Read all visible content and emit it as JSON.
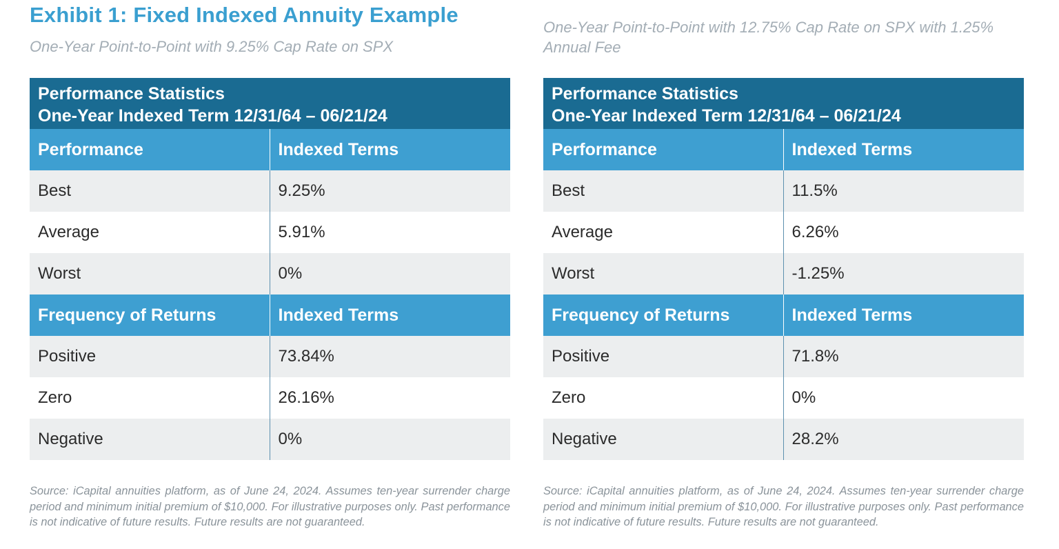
{
  "exhibit_title": "Exhibit 1: Fixed Indexed Annuity Example",
  "panels": [
    {
      "subtitle": "One-Year Point-to-Point with 9.25% Cap Rate on SPX",
      "table_title_line1": "Performance Statistics",
      "table_title_line2": "One-Year Indexed Term 12/31/64 – 06/21/24",
      "performance_header": [
        "Performance",
        "Indexed Terms"
      ],
      "performance_rows": [
        {
          "label": "Best",
          "value": "9.25%"
        },
        {
          "label": "Average",
          "value": "5.91%"
        },
        {
          "label": "Worst",
          "value": "0%"
        }
      ],
      "frequency_header": [
        "Frequency of Returns",
        "Indexed Terms"
      ],
      "frequency_rows": [
        {
          "label": "Positive",
          "value": "73.84%"
        },
        {
          "label": "Zero",
          "value": "26.16%"
        },
        {
          "label": "Negative",
          "value": "0%"
        }
      ],
      "footnote": "Source: iCapital annuities platform, as of June 24, 2024. Assumes ten-year surrender charge period and minimum initial premium of $10,000. For illustrative purposes only. Past performance is not indicative of future results. Future results are not guaranteed."
    },
    {
      "subtitle": "One-Year Point-to-Point with 12.75% Cap Rate on SPX with 1.25% Annual Fee",
      "table_title_line1": "Performance Statistics",
      "table_title_line2": "One-Year Indexed Term 12/31/64 – 06/21/24",
      "performance_header": [
        "Performance",
        "Indexed Terms"
      ],
      "performance_rows": [
        {
          "label": "Best",
          "value": "11.5%"
        },
        {
          "label": "Average",
          "value": "6.26%"
        },
        {
          "label": "Worst",
          "value": "-1.25%"
        }
      ],
      "frequency_header": [
        "Frequency of Returns",
        "Indexed Terms"
      ],
      "frequency_rows": [
        {
          "label": "Positive",
          "value": "71.8%"
        },
        {
          "label": "Zero",
          "value": "0%"
        },
        {
          "label": "Negative",
          "value": "28.2%"
        }
      ],
      "footnote": "Source: iCapital annuities platform, as of June 24, 2024. Assumes ten-year surrender charge period and minimum initial premium of $10,000. For illustrative purposes only. Past performance is not indicative of future results. Future results are not guaranteed."
    }
  ]
}
